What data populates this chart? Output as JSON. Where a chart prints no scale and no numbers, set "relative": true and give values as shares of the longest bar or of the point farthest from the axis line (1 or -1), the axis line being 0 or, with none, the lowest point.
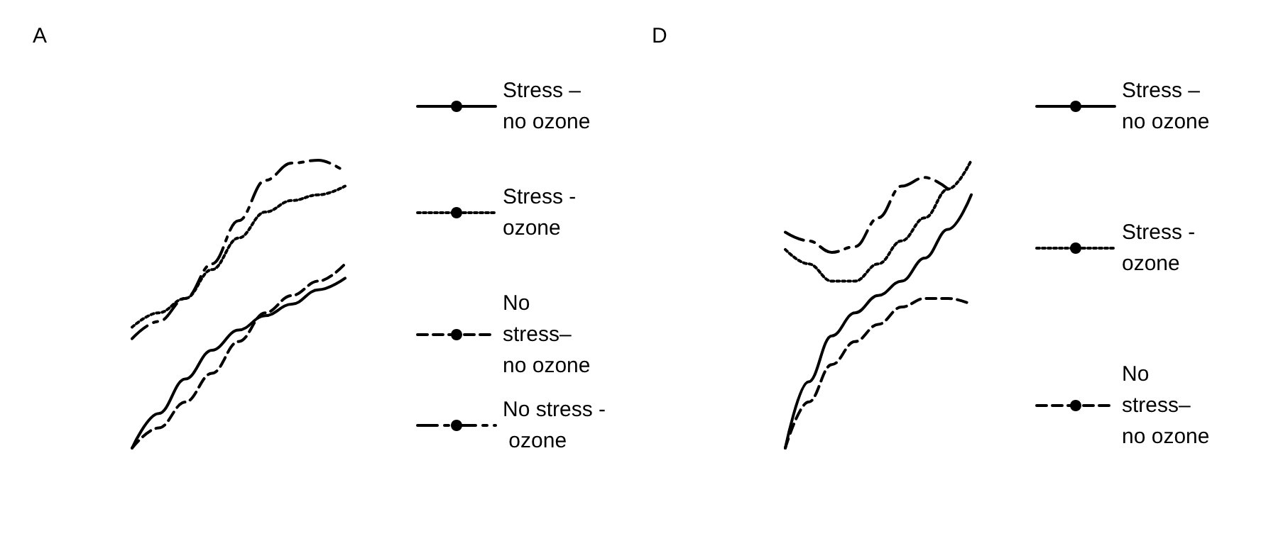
{
  "chart_data": [
    {
      "type": "line",
      "title": "A",
      "relative": true,
      "legend": "right",
      "marker": "none",
      "categories": [
        null,
        null,
        null,
        null,
        null,
        null,
        null,
        null,
        null
      ],
      "series": [
        {
          "name": "Stress – no ozone",
          "color": "#000000",
          "line_style": "solid",
          "values": [
            0,
            0.12,
            0.24,
            0.34,
            0.41,
            0.46,
            0.5,
            0.55,
            0.59
          ]
        },
        {
          "name": "Stress - ozone",
          "color": "#000000",
          "line_style": "dotted",
          "values": [
            0.42,
            0.47,
            0.52,
            0.62,
            0.73,
            0.82,
            0.86,
            0.88,
            0.91
          ]
        },
        {
          "name": "No stress– no ozone",
          "color": "#000000",
          "line_style": "dashed",
          "values": [
            0,
            0.07,
            0.16,
            0.26,
            0.37,
            0.47,
            0.53,
            0.58,
            0.64
          ]
        },
        {
          "name": "No stress - ozone",
          "color": "#000000",
          "line_style": "dashdot",
          "values": [
            0.38,
            0.44,
            0.52,
            0.64,
            0.79,
            0.93,
            0.99,
            1,
            0.96
          ]
        }
      ]
    },
    {
      "type": "line",
      "title": "D",
      "relative": true,
      "legend": "right",
      "marker": "none",
      "categories": [
        null,
        null,
        null,
        null,
        null,
        null,
        null,
        null,
        null
      ],
      "series": [
        {
          "name": "Stress – no ozone",
          "color": "#000000",
          "line_style": "solid",
          "values": [
            0,
            0.23,
            0.39,
            0.47,
            0.53,
            0.58,
            0.66,
            0.76,
            0.88
          ]
        },
        {
          "name": "Stress - ozone",
          "color": "#000000",
          "line_style": "dotted",
          "values": [
            0.69,
            0.64,
            0.58,
            0.58,
            0.64,
            0.72,
            0.8,
            0.9,
            1
          ]
        },
        {
          "name": "No stress– no ozone",
          "color": "#000000",
          "line_style": "dashed",
          "values": [
            0,
            0.16,
            0.29,
            0.37,
            0.43,
            0.49,
            0.52,
            0.52,
            0.5
          ]
        },
        {
          "color": "#000000",
          "line_style": "dashdot",
          "values": [
            0.75,
            0.72,
            0.68,
            0.7,
            0.8,
            0.91,
            0.94,
            0.9,
            null
          ]
        }
      ]
    }
  ]
}
